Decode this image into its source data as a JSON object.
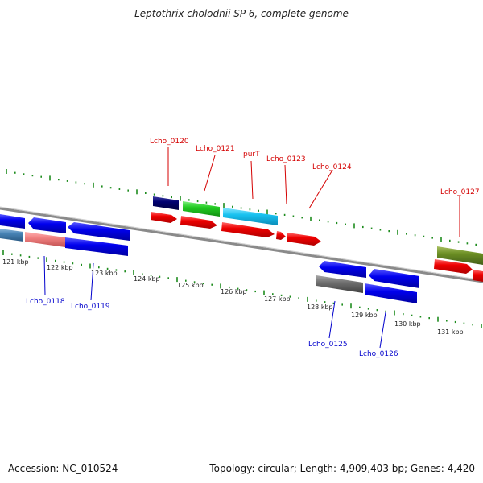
{
  "title": "Leptothrix cholodnii SP-6, complete genome",
  "footer": {
    "accession": "Accession: NC_010524",
    "summary": "Topology: circular; Length: 4,909,403 bp; Genes: 4,420"
  },
  "colors": {
    "backbone": "#8a8a8a",
    "tick": "#1e8c1e",
    "top_label": "#d40000",
    "bottom_label": "#0000cc"
  },
  "scale_labels": [
    "121 kbp",
    "122 kbp",
    "123 kbp",
    "124 kbp",
    "125 kbp",
    "126 kbp",
    "127 kbp",
    "128 kbp",
    "129 kbp",
    "130 kbp",
    "131 kbp"
  ],
  "genes_top": [
    {
      "name": "Lcho_0120"
    },
    {
      "name": "Lcho_0121"
    },
    {
      "name": "purT"
    },
    {
      "name": "Lcho_0123"
    },
    {
      "name": "Lcho_0124"
    },
    {
      "name": "Lcho_0127"
    }
  ],
  "genes_bottom": [
    {
      "name": "Lcho_0118"
    },
    {
      "name": "Lcho_0119"
    },
    {
      "name": "Lcho_0125"
    },
    {
      "name": "Lcho_0126"
    }
  ]
}
